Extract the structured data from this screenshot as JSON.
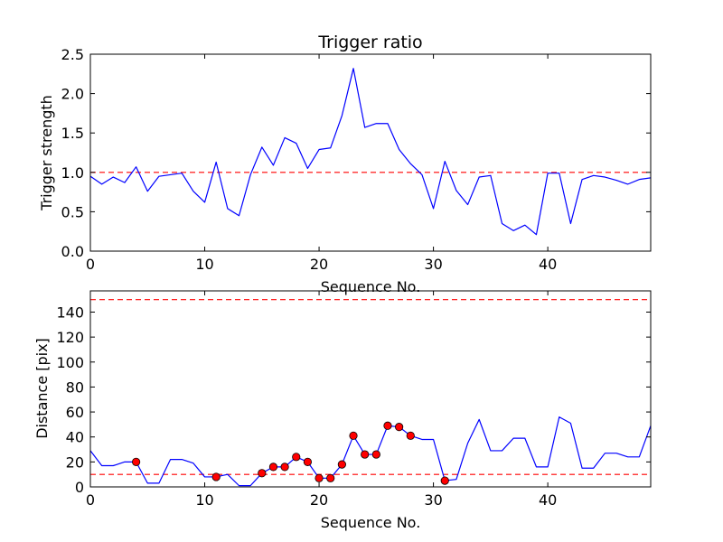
{
  "colors": {
    "line": "#0000ff",
    "threshold": "#ff0000",
    "marker_fill": "#ff0000",
    "marker_edge": "#000000",
    "axes": "#000000",
    "background": "#ffffff"
  },
  "chart_data": [
    {
      "type": "line",
      "title": "Trigger ratio",
      "xlabel": "Sequence No.",
      "ylabel": "Trigger strength",
      "xlim": [
        0,
        49
      ],
      "ylim": [
        0,
        2.5
      ],
      "xticks": [
        0,
        10,
        20,
        30,
        40
      ],
      "yticks": [
        0.0,
        0.5,
        1.0,
        1.5,
        2.0,
        2.5
      ],
      "ytick_labels": [
        "0.0",
        "0.5",
        "1.0",
        "1.5",
        "2.0",
        "2.5"
      ],
      "series": [
        {
          "name": "trigger strength",
          "x": [
            0,
            1,
            2,
            3,
            4,
            5,
            6,
            7,
            8,
            9,
            10,
            11,
            12,
            13,
            14,
            15,
            16,
            17,
            18,
            19,
            20,
            21,
            22,
            23,
            24,
            25,
            26,
            27,
            28,
            29,
            30,
            31,
            32,
            33,
            34,
            35,
            36,
            37,
            38,
            39,
            40,
            41,
            42,
            43,
            44,
            45,
            46,
            47,
            48,
            49
          ],
          "values": [
            0.95,
            0.85,
            0.94,
            0.87,
            1.07,
            0.76,
            0.95,
            0.97,
            0.99,
            0.76,
            0.62,
            1.13,
            0.54,
            0.45,
            0.97,
            1.32,
            1.09,
            1.44,
            1.37,
            1.05,
            1.29,
            1.31,
            1.72,
            2.32,
            1.57,
            1.62,
            1.62,
            1.29,
            1.11,
            0.97,
            0.54,
            1.14,
            0.77,
            0.59,
            0.94,
            0.96,
            0.35,
            0.26,
            0.33,
            0.21,
            0.99,
            0.99,
            0.35,
            0.91,
            0.96,
            0.94,
            0.9,
            0.85,
            0.91,
            0.93
          ]
        }
      ],
      "reference_lines": [
        {
          "axis": "y",
          "value": 1.0,
          "style": "dashed"
        }
      ],
      "grid": false
    },
    {
      "type": "line",
      "title": "",
      "xlabel": "Sequence No.",
      "ylabel": "Distance [pix]",
      "xlim": [
        0,
        49
      ],
      "ylim": [
        0,
        157
      ],
      "xticks": [
        0,
        10,
        20,
        30,
        40
      ],
      "yticks": [
        0,
        20,
        40,
        60,
        80,
        100,
        120,
        140
      ],
      "ytick_labels": [
        "0",
        "20",
        "40",
        "60",
        "80",
        "100",
        "120",
        "140"
      ],
      "series": [
        {
          "name": "distance",
          "x": [
            0,
            1,
            2,
            3,
            4,
            5,
            6,
            7,
            8,
            9,
            10,
            11,
            12,
            13,
            14,
            15,
            16,
            17,
            18,
            19,
            20,
            21,
            22,
            23,
            24,
            25,
            26,
            27,
            28,
            29,
            30,
            31,
            32,
            33,
            34,
            35,
            36,
            37,
            38,
            39,
            40,
            41,
            42,
            43,
            44,
            45,
            46,
            47,
            48,
            49
          ],
          "values": [
            29,
            17,
            17,
            20,
            20,
            3,
            3,
            22,
            22,
            19,
            8,
            8,
            10,
            1,
            1,
            11,
            16,
            16,
            24,
            20,
            7,
            7,
            18,
            41,
            26,
            26,
            49,
            48,
            41,
            38,
            38,
            5,
            6,
            35,
            54,
            29,
            29,
            39,
            39,
            16,
            16,
            56,
            51,
            15,
            15,
            27,
            27,
            24,
            24,
            49
          ]
        }
      ],
      "markers": {
        "x": [
          4,
          11,
          15,
          16,
          17,
          18,
          19,
          20,
          21,
          22,
          23,
          24,
          25,
          26,
          27,
          28,
          31
        ],
        "y": [
          20,
          8,
          11,
          16,
          16,
          24,
          20,
          7,
          7,
          18,
          41,
          26,
          26,
          49,
          48,
          41,
          5
        ]
      },
      "reference_lines": [
        {
          "axis": "y",
          "value": 150,
          "style": "dashed"
        },
        {
          "axis": "y",
          "value": 10,
          "style": "dashed"
        }
      ],
      "grid": false
    }
  ]
}
